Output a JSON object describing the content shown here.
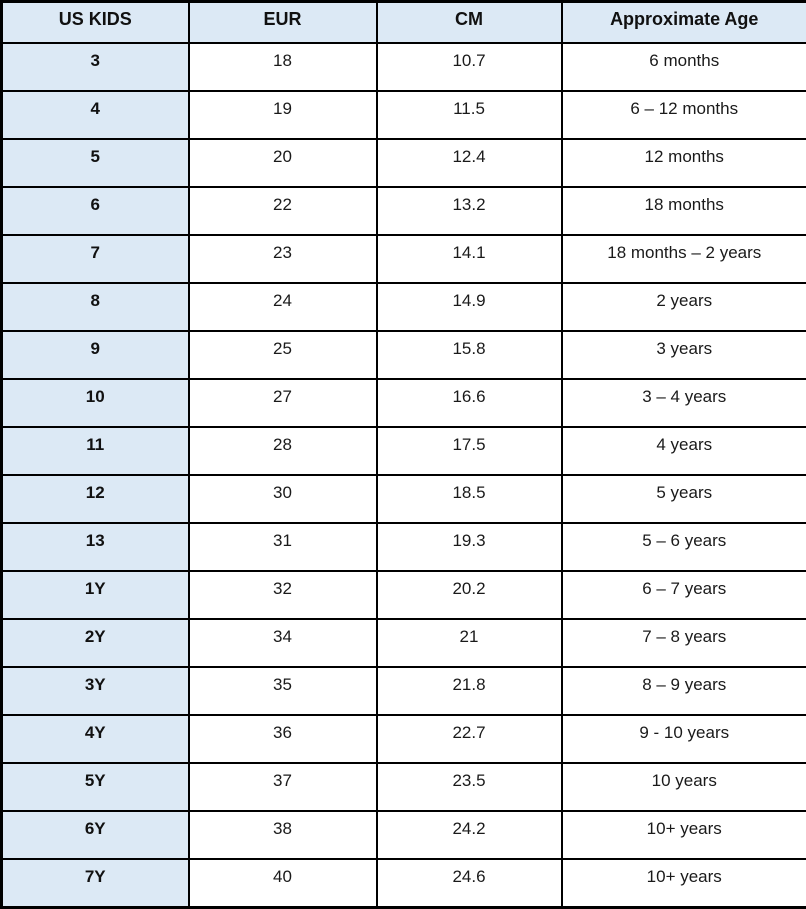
{
  "colors": {
    "header_bg": "#dce9f5",
    "row_label_bg": "#dce9f5",
    "cell_bg": "#ffffff",
    "border": "#000000",
    "text": "#1a1a1a"
  },
  "chart_data": {
    "type": "table",
    "columns": [
      "US KIDS",
      "EUR",
      "CM",
      "Approximate Age"
    ],
    "rows": [
      [
        "3",
        "18",
        "10.7",
        "6 months"
      ],
      [
        "4",
        "19",
        "11.5",
        "6 – 12 months"
      ],
      [
        "5",
        "20",
        "12.4",
        "12 months"
      ],
      [
        "6",
        "22",
        "13.2",
        "18 months"
      ],
      [
        "7",
        "23",
        "14.1",
        "18 months – 2 years"
      ],
      [
        "8",
        "24",
        "14.9",
        "2 years"
      ],
      [
        "9",
        "25",
        "15.8",
        "3 years"
      ],
      [
        "10",
        "27",
        "16.6",
        "3 – 4 years"
      ],
      [
        "11",
        "28",
        "17.5",
        "4 years"
      ],
      [
        "12",
        "30",
        "18.5",
        "5 years"
      ],
      [
        "13",
        "31",
        "19.3",
        "5 – 6 years"
      ],
      [
        "1Y",
        "32",
        "20.2",
        "6 – 7 years"
      ],
      [
        "2Y",
        "34",
        "21",
        "7 – 8 years"
      ],
      [
        "3Y",
        "35",
        "21.8",
        "8 – 9 years"
      ],
      [
        "4Y",
        "36",
        "22.7",
        "9 - 10 years"
      ],
      [
        "5Y",
        "37",
        "23.5",
        "10 years"
      ],
      [
        "6Y",
        "38",
        "24.2",
        "10+ years"
      ],
      [
        "7Y",
        "40",
        "24.6",
        "10+ years"
      ]
    ]
  }
}
